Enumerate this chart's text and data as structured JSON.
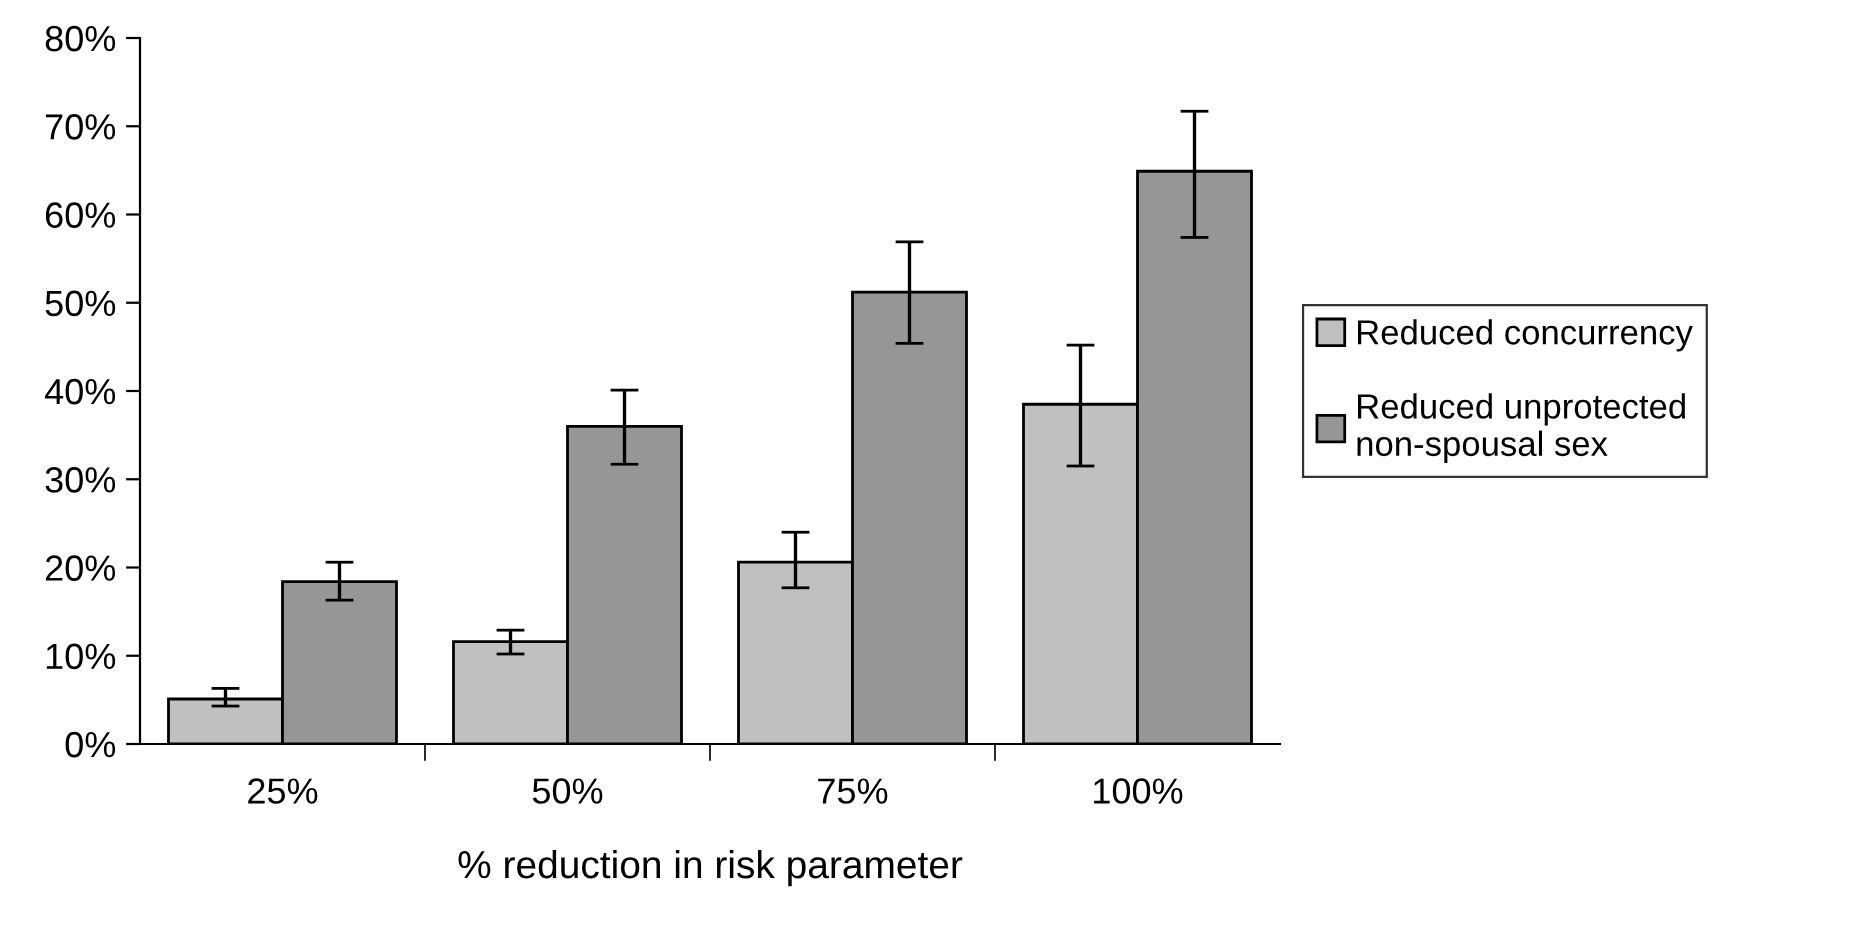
{
  "chart_data": {
    "type": "bar",
    "xlabel": "% reduction in risk parameter",
    "categories": [
      "25%",
      "50%",
      "75%",
      "100%"
    ],
    "series": [
      {
        "name": "Reduced concurrency",
        "color": "#c0c0c0",
        "values": [
          5.1,
          11.6,
          20.6,
          38.5
        ],
        "errors": [
          [
            4.3,
            6.3
          ],
          [
            10.2,
            12.9
          ],
          [
            17.7,
            24.0
          ],
          [
            31.5,
            45.2
          ]
        ]
      },
      {
        "name": "Reduced unprotected non-spousal sex",
        "color": "#969696",
        "values": [
          18.4,
          36.0,
          51.2,
          64.9
        ],
        "errors": [
          [
            16.3,
            20.6
          ],
          [
            31.7,
            40.1
          ],
          [
            45.4,
            56.9
          ],
          [
            57.4,
            71.7
          ]
        ]
      }
    ],
    "ylim": [
      0,
      80
    ],
    "yticks": [
      {
        "value": 0,
        "label": "0%"
      },
      {
        "value": 10,
        "label": "10%"
      },
      {
        "value": 20,
        "label": "20%"
      },
      {
        "value": 30,
        "label": "30%"
      },
      {
        "value": 40,
        "label": "40%"
      },
      {
        "value": 50,
        "label": "50%"
      },
      {
        "value": 60,
        "label": "60%"
      },
      {
        "value": 70,
        "label": "70%"
      },
      {
        "value": 80,
        "label": "80%"
      }
    ],
    "grid": false,
    "legend": "right"
  }
}
